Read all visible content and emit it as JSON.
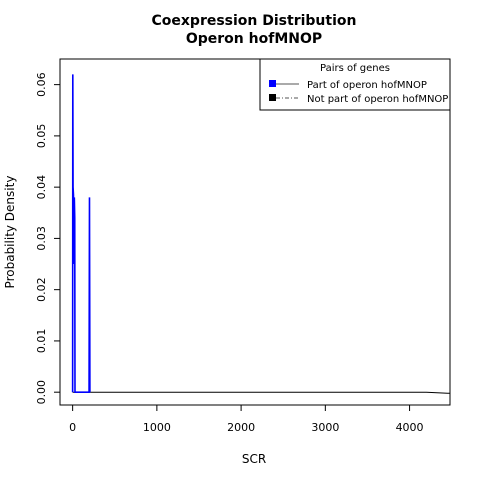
{
  "chart_data": {
    "type": "line",
    "title": "Coexpression Distribution",
    "subtitle": "Operon hofMNOP",
    "xlabel": "SCR",
    "ylabel": "Probability Density",
    "xlim": [
      -150,
      4480
    ],
    "ylim": [
      -0.0025,
      0.065
    ],
    "x_ticks": [
      0,
      1000,
      2000,
      3000,
      4000
    ],
    "x_tick_labels": [
      "0",
      "1000",
      "2000",
      "3000",
      "4000"
    ],
    "y_ticks": [
      0.0,
      0.01,
      0.02,
      0.03,
      0.04,
      0.05,
      0.06
    ],
    "y_tick_labels": [
      "0.00",
      "0.01",
      "0.02",
      "0.03",
      "0.04",
      "0.05",
      "0.06"
    ],
    "legend": {
      "title": "Pairs of genes",
      "position": "top-right",
      "entries": [
        {
          "label": "Part of operon hofMNOP",
          "swatch_color": "#0000ff",
          "line_color": "#555555",
          "line_style": "solid"
        },
        {
          "label": "Not part of operon hofMNOP",
          "swatch_color": "#000000",
          "line_color": "#555555",
          "line_style": "dashdot"
        }
      ]
    },
    "series": [
      {
        "name": "Part of operon hofMNOP",
        "color": "#0000ff",
        "points": [
          [
            0,
            0
          ],
          [
            2,
            0.062
          ],
          [
            5,
            0.04
          ],
          [
            10,
            0.0385
          ],
          [
            15,
            0.025
          ],
          [
            20,
            0.038
          ],
          [
            25,
            0.034
          ],
          [
            28,
            0
          ],
          [
            35,
            0
          ],
          [
            150,
            0
          ],
          [
            195,
            0
          ],
          [
            200,
            0.038
          ],
          [
            205,
            0
          ]
        ]
      },
      {
        "name": "Not part of operon hofMNOP",
        "color": "#000000",
        "points": [
          [
            0,
            0
          ],
          [
            4200,
            0
          ],
          [
            4450,
            -0.0002
          ],
          [
            4480,
            -0.0002
          ]
        ]
      }
    ]
  }
}
